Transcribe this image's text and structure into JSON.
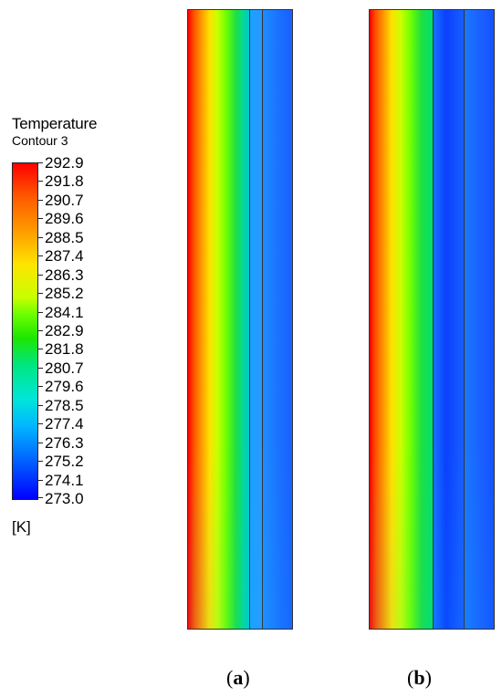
{
  "legend": {
    "title": "Temperature",
    "subtitle": "Contour 3",
    "unit": "[K]",
    "values": [
      "292.9",
      "291.8",
      "290.7",
      "289.6",
      "288.5",
      "287.4",
      "286.3",
      "285.2",
      "284.1",
      "282.9",
      "281.8",
      "280.7",
      "279.6",
      "278.5",
      "277.4",
      "276.3",
      "275.2",
      "274.1",
      "273.0"
    ],
    "colors": {
      "max": "#ff0000",
      "mid": "#1ee600",
      "min": "#0000ff"
    }
  },
  "panels": [
    {
      "label_open": "(",
      "letter": "a",
      "label_close": ")"
    },
    {
      "label_open": "(",
      "letter": "b",
      "label_close": ")"
    }
  ]
}
